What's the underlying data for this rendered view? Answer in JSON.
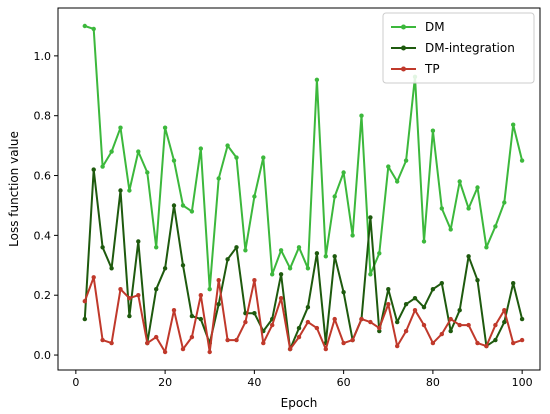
{
  "chart_data": {
    "type": "line",
    "xlabel": "Epoch",
    "ylabel": "Loss function value",
    "xlim": [
      -4,
      104
    ],
    "ylim": [
      -0.05,
      1.16
    ],
    "xticks": [
      "0",
      "20",
      "40",
      "60",
      "80",
      "100"
    ],
    "xtick_values": [
      0,
      20,
      40,
      60,
      80,
      100
    ],
    "yticks": [
      "0.0",
      "0.2",
      "0.4",
      "0.6",
      "0.8",
      "1.0"
    ],
    "ytick_values": [
      0.0,
      0.2,
      0.4,
      0.6,
      0.8,
      1.0
    ],
    "grid": false,
    "legend_position": "top-right",
    "x": [
      2,
      4,
      6,
      8,
      10,
      12,
      14,
      16,
      18,
      20,
      22,
      24,
      26,
      28,
      30,
      32,
      34,
      36,
      38,
      40,
      42,
      44,
      46,
      48,
      50,
      52,
      54,
      56,
      58,
      60,
      62,
      64,
      66,
      68,
      70,
      72,
      74,
      76,
      78,
      80,
      82,
      84,
      86,
      88,
      90,
      92,
      94,
      96,
      98,
      100
    ],
    "series": [
      {
        "name": "DM",
        "color": "#3cb83c",
        "values": [
          1.1,
          1.09,
          0.63,
          0.68,
          0.76,
          0.55,
          0.68,
          0.61,
          0.36,
          0.76,
          0.65,
          0.5,
          0.48,
          0.69,
          0.22,
          0.59,
          0.7,
          0.66,
          0.35,
          0.53,
          0.66,
          0.27,
          0.35,
          0.29,
          0.36,
          0.29,
          0.92,
          0.33,
          0.53,
          0.61,
          0.4,
          0.8,
          0.27,
          0.34,
          0.63,
          0.58,
          0.65,
          0.93,
          0.38,
          0.75,
          0.49,
          0.42,
          0.58,
          0.49,
          0.56,
          0.36,
          0.43,
          0.51,
          0.77,
          0.65
        ]
      },
      {
        "name": "DM-integration",
        "color": "#1e5a0e",
        "values": [
          0.12,
          0.62,
          0.36,
          0.29,
          0.55,
          0.13,
          0.38,
          0.04,
          0.22,
          0.29,
          0.5,
          0.3,
          0.13,
          0.12,
          0.04,
          0.17,
          0.32,
          0.36,
          0.14,
          0.14,
          0.08,
          0.12,
          0.27,
          0.02,
          0.09,
          0.16,
          0.34,
          0.04,
          0.33,
          0.21,
          0.05,
          0.12,
          0.46,
          0.08,
          0.22,
          0.11,
          0.17,
          0.19,
          0.16,
          0.22,
          0.24,
          0.08,
          0.15,
          0.33,
          0.25,
          0.03,
          0.05,
          0.11,
          0.24,
          0.12
        ]
      },
      {
        "name": "TP",
        "color": "#c0392b",
        "values": [
          0.18,
          0.26,
          0.05,
          0.04,
          0.22,
          0.19,
          0.2,
          0.04,
          0.06,
          0.01,
          0.15,
          0.02,
          0.06,
          0.2,
          0.01,
          0.25,
          0.05,
          0.05,
          0.11,
          0.25,
          0.04,
          0.1,
          0.19,
          0.02,
          0.06,
          0.11,
          0.09,
          0.02,
          0.12,
          0.04,
          0.05,
          0.12,
          0.11,
          0.09,
          0.17,
          0.03,
          0.08,
          0.15,
          0.1,
          0.04,
          0.07,
          0.12,
          0.1,
          0.1,
          0.04,
          0.03,
          0.1,
          0.15,
          0.04,
          0.05
        ]
      }
    ]
  }
}
